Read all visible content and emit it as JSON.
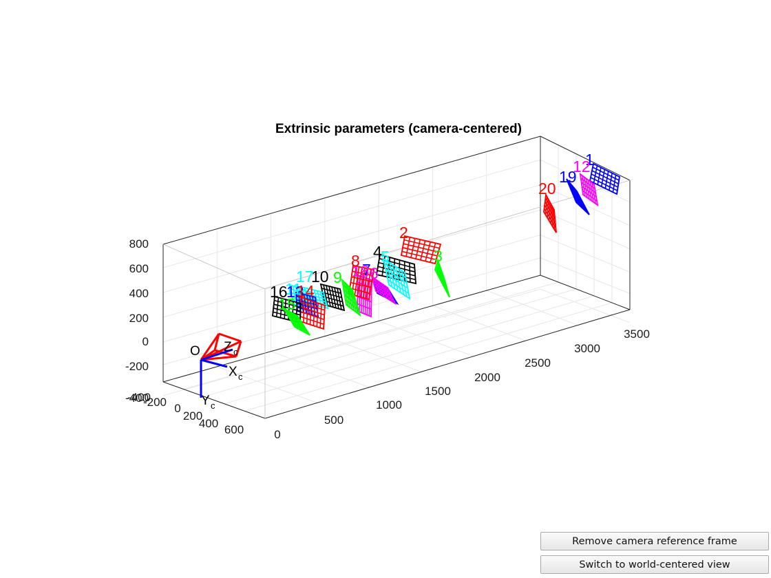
{
  "chart_data": {
    "type": "3d-line",
    "title": "Extrinsic parameters (camera-centered)",
    "axes": {
      "x_range": [
        -400,
        800
      ],
      "y_range": [
        0,
        3500
      ],
      "z_range": [
        -400,
        800
      ],
      "x_ticks": [
        "-400",
        "-200",
        "0",
        "200",
        "400",
        "600"
      ],
      "y_ticks": [
        "0",
        "500",
        "1000",
        "1500",
        "2000",
        "2500",
        "3000",
        "3500"
      ],
      "z_ticks": [
        "-400",
        "-200",
        "0",
        "200",
        "400",
        "600",
        "800"
      ],
      "grid": true
    },
    "camera": {
      "origin_label": "O",
      "axis_labels": [
        {
          "main": "Z",
          "sub": "c"
        },
        {
          "main": "X",
          "sub": "c"
        },
        {
          "main": "Y",
          "sub": "c"
        }
      ]
    },
    "boards": [
      {
        "id": "1",
        "color": "#0000ff"
      },
      {
        "id": "2",
        "color": "#ff0000"
      },
      {
        "id": "3",
        "color": "#00ff00"
      },
      {
        "id": "4",
        "color": "#000000"
      },
      {
        "id": "5",
        "color": "#00ffff"
      },
      {
        "id": "6",
        "color": "#ff00ff"
      },
      {
        "id": "7",
        "color": "#0000ff"
      },
      {
        "id": "8",
        "color": "#ff0000"
      },
      {
        "id": "9",
        "color": "#00ff00"
      },
      {
        "id": "10",
        "color": "#000000"
      },
      {
        "id": "11",
        "color": "#00ffff"
      },
      {
        "id": "12",
        "color": "#ff00ff"
      },
      {
        "id": "13",
        "color": "#0000ff"
      },
      {
        "id": "14",
        "color": "#ff0000"
      },
      {
        "id": "15",
        "color": "#00ff00"
      },
      {
        "id": "16",
        "color": "#000000"
      },
      {
        "id": "17",
        "color": "#00ffff"
      },
      {
        "id": "18",
        "color": "#ff00ff"
      },
      {
        "id": "19",
        "color": "#0000ff"
      },
      {
        "id": "20",
        "color": "#ff0000"
      }
    ]
  },
  "buttons": {
    "remove_camera_frame": "Remove camera reference frame",
    "switch_view": "Switch to world-centered view"
  }
}
